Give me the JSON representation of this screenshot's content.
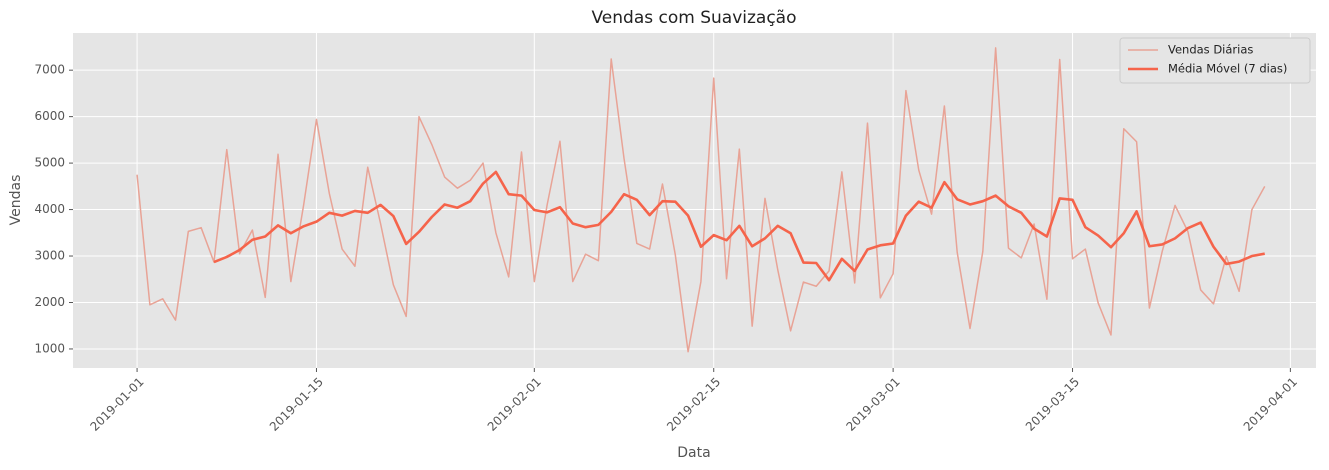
{
  "chart_data": {
    "type": "line",
    "title": "Vendas com Suavização",
    "xlabel": "Data",
    "ylabel": "Vendas",
    "x": [
      "2019-01-01",
      "2019-01-02",
      "2019-01-03",
      "2019-01-04",
      "2019-01-05",
      "2019-01-06",
      "2019-01-07",
      "2019-01-08",
      "2019-01-09",
      "2019-01-10",
      "2019-01-11",
      "2019-01-12",
      "2019-01-13",
      "2019-01-14",
      "2019-01-15",
      "2019-01-16",
      "2019-01-17",
      "2019-01-18",
      "2019-01-19",
      "2019-01-20",
      "2019-01-21",
      "2019-01-22",
      "2019-01-23",
      "2019-01-24",
      "2019-01-25",
      "2019-01-26",
      "2019-01-27",
      "2019-01-28",
      "2019-01-29",
      "2019-01-30",
      "2019-01-31",
      "2019-02-01",
      "2019-02-02",
      "2019-02-03",
      "2019-02-04",
      "2019-02-05",
      "2019-02-06",
      "2019-02-07",
      "2019-02-08",
      "2019-02-09",
      "2019-02-10",
      "2019-02-11",
      "2019-02-12",
      "2019-02-13",
      "2019-02-14",
      "2019-02-15",
      "2019-02-16",
      "2019-02-17",
      "2019-02-18",
      "2019-02-19",
      "2019-02-20",
      "2019-02-21",
      "2019-02-22",
      "2019-02-23",
      "2019-02-24",
      "2019-02-25",
      "2019-02-26",
      "2019-02-27",
      "2019-02-28",
      "2019-03-01",
      "2019-03-02",
      "2019-03-03",
      "2019-03-04",
      "2019-03-05",
      "2019-03-06",
      "2019-03-07",
      "2019-03-08",
      "2019-03-09",
      "2019-03-10",
      "2019-03-11",
      "2019-03-12",
      "2019-03-13",
      "2019-03-14",
      "2019-03-15",
      "2019-03-16",
      "2019-03-17",
      "2019-03-18",
      "2019-03-19",
      "2019-03-20",
      "2019-03-21",
      "2019-03-22",
      "2019-03-23",
      "2019-03-24",
      "2019-03-25",
      "2019-03-26",
      "2019-03-27",
      "2019-03-28",
      "2019-03-29",
      "2019-03-30"
    ],
    "series": [
      {
        "name": "Vendas Diárias",
        "color": "#e8a396",
        "width": 1.5,
        "values": [
          4750,
          1950,
          2080,
          1620,
          3530,
          3610,
          2870,
          5290,
          3050,
          3560,
          2110,
          5190,
          2450,
          4100,
          5940,
          4350,
          3150,
          2780,
          4910,
          3700,
          2380,
          1700,
          6000,
          5400,
          4700,
          4460,
          4630,
          5000,
          3500,
          2550,
          5240,
          2450,
          4100,
          5470,
          2450,
          3040,
          2900,
          7240,
          5100,
          3270,
          3150,
          4550,
          3030,
          940,
          2450,
          6830,
          2510,
          5300,
          1490,
          4240,
          2700,
          1390,
          2440,
          2350,
          2680,
          4810,
          2420,
          5860,
          2100,
          2620,
          6560,
          4850,
          3900,
          6230,
          3080,
          1440,
          3100,
          7480,
          3170,
          2960,
          3690,
          2070,
          7230,
          2940,
          3150,
          1990,
          1300,
          5740,
          5460,
          1880,
          3100,
          4090,
          3530,
          2270,
          1970,
          2990,
          2240,
          4000,
          4500
        ]
      },
      {
        "name": "Média Móvel (7 dias)",
        "color": "#f5644b",
        "width": 2.6,
        "values": [
          null,
          null,
          null,
          null,
          null,
          null,
          2870,
          2980,
          3130,
          3350,
          3420,
          3660,
          3490,
          3640,
          3740,
          3930,
          3870,
          3970,
          3930,
          4100,
          3860,
          3260,
          3520,
          3840,
          4110,
          4040,
          4180,
          4560,
          4810,
          4330,
          4300,
          3990,
          3940,
          4050,
          3700,
          3620,
          3670,
          3950,
          4330,
          4210,
          3880,
          4180,
          4170,
          3870,
          3200,
          3450,
          3340,
          3650,
          3210,
          3380,
          3650,
          3490,
          2860,
          2850,
          2480,
          2940,
          2680,
          3140,
          3230,
          3270,
          3870,
          4170,
          4040,
          4590,
          4220,
          4110,
          4180,
          4300,
          4070,
          3930,
          3590,
          3420,
          4240,
          4210,
          3620,
          3440,
          3190,
          3490,
          3960,
          3210,
          3250,
          3380,
          3600,
          3720,
          3200,
          2830,
          2880,
          3000,
          3050
        ]
      }
    ],
    "xlim": [
      "2018-12-27",
      "2019-04-03"
    ],
    "xticks": [
      "2019-01-01",
      "2019-01-15",
      "2019-02-01",
      "2019-02-15",
      "2019-03-01",
      "2019-03-15",
      "2019-04-01"
    ],
    "ylim": [
      590,
      7800
    ],
    "yticks": [
      1000,
      2000,
      3000,
      4000,
      5000,
      6000,
      7000
    ],
    "grid": true,
    "legend": "upper right"
  }
}
